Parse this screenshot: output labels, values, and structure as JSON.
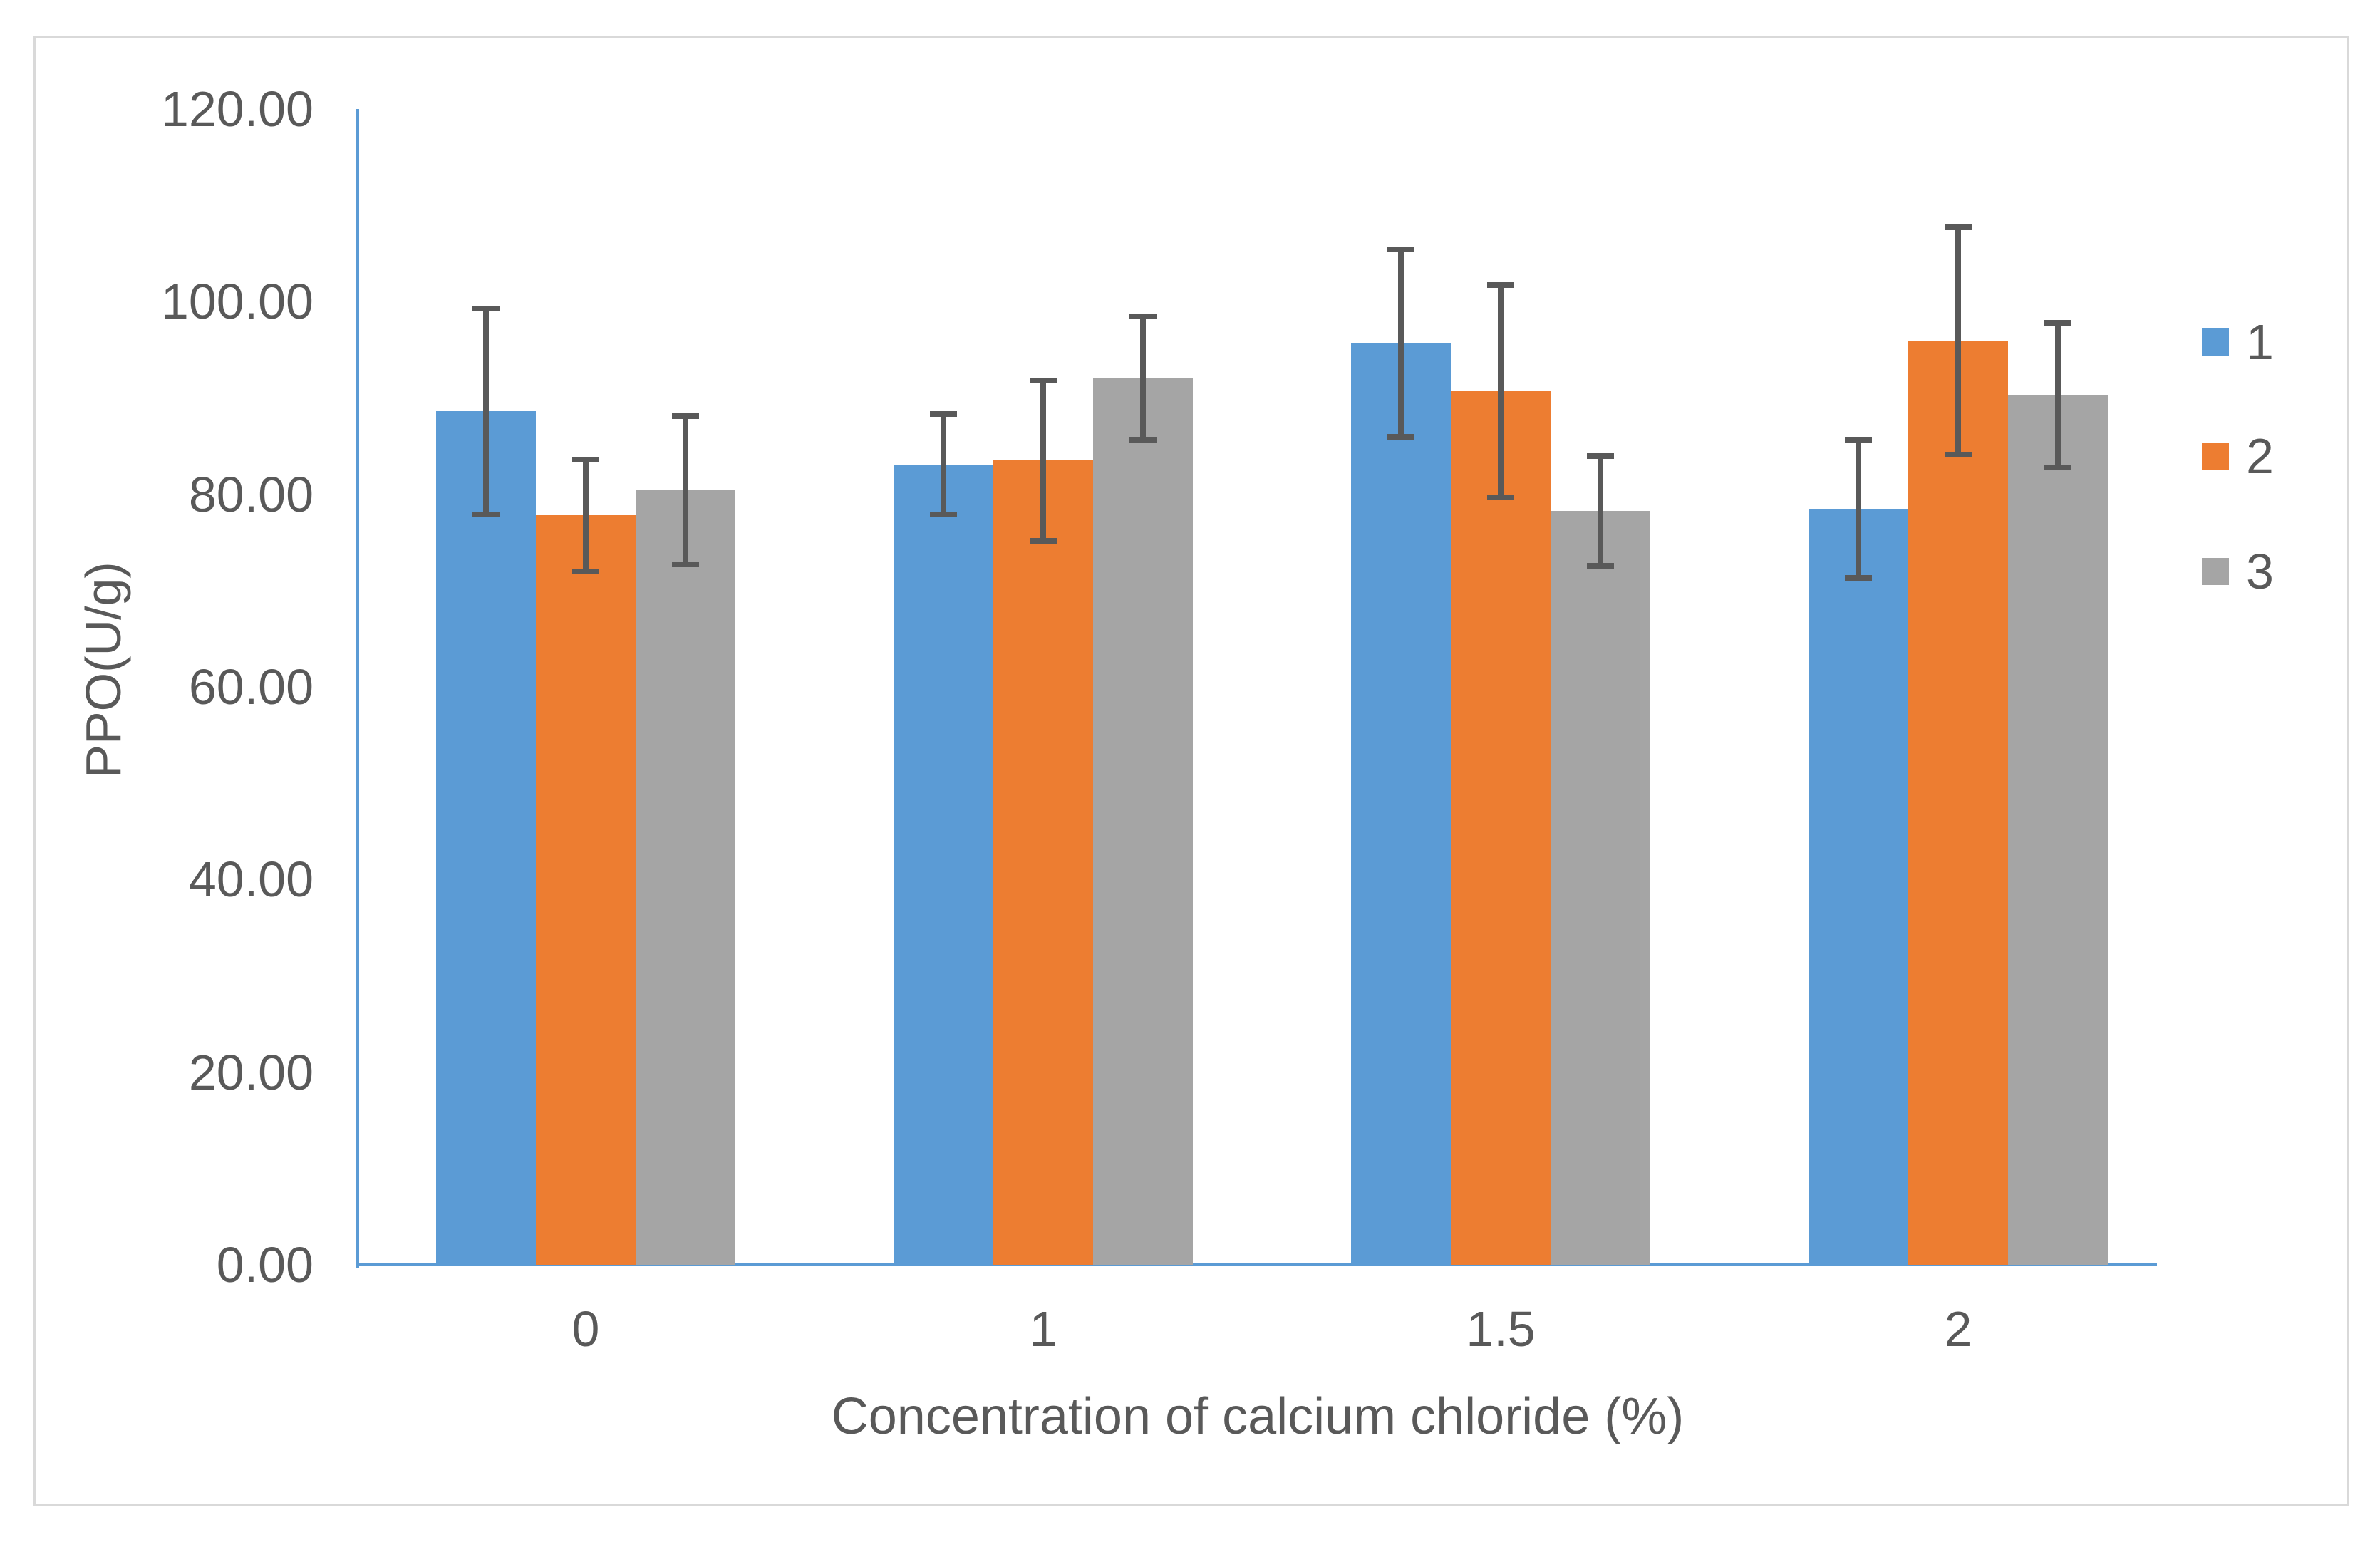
{
  "chart_data": {
    "type": "bar",
    "title": "",
    "xlabel": "Concentration of calcium chloride (%)",
    "ylabel": "PPO(U/g)",
    "categories": [
      "0",
      "1",
      "1.5",
      "2"
    ],
    "y_tick_labels": [
      "0.00",
      "20.00",
      "40.00",
      "60.00",
      "80.00",
      "100.00",
      "120.00"
    ],
    "y_tick_values": [
      0,
      20,
      40,
      60,
      80,
      100,
      120
    ],
    "ylim": [
      0,
      120
    ],
    "grid": false,
    "legend_position": "right",
    "error_bars": true,
    "series": [
      {
        "name": "1",
        "color": "#5B9BD5",
        "values": [
          88.6,
          83.1,
          95.7,
          78.5
        ],
        "errors": [
          10.7,
          5.2,
          9.7,
          7.2
        ]
      },
      {
        "name": "2",
        "color": "#ED7D31",
        "values": [
          77.8,
          83.5,
          90.7,
          95.9
        ],
        "errors": [
          5.8,
          8.3,
          11.0,
          11.8
        ]
      },
      {
        "name": "3",
        "color": "#A5A5A5",
        "values": [
          80.4,
          92.1,
          78.3,
          90.3
        ],
        "errors": [
          7.7,
          6.4,
          5.7,
          7.5
        ]
      }
    ],
    "colors": {
      "axis_line": "#5B9BD5",
      "error_bar": "#595959",
      "text": "#595959",
      "frame_border": "#D9D9D9",
      "background": "#FFFFFF"
    }
  }
}
